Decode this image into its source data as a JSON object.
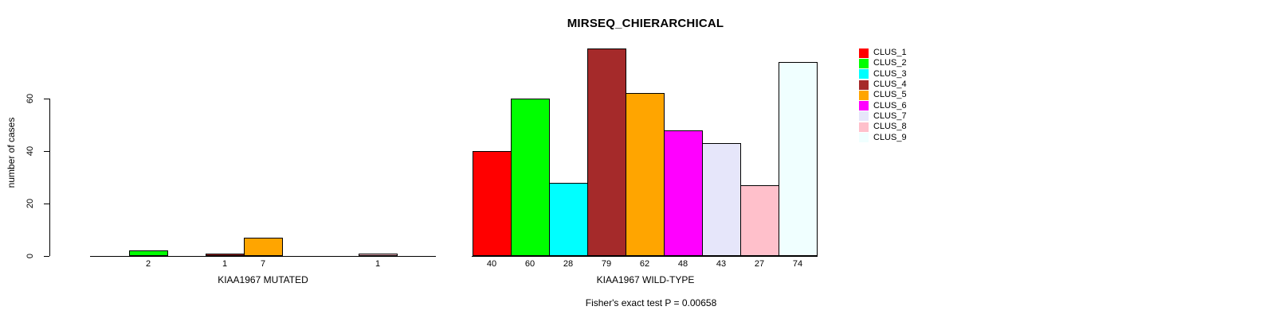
{
  "chart_data": {
    "type": "bar",
    "title": "MIRSEQ_CHIERARCHICAL",
    "ylabel": "number of cases",
    "ylim": [
      0,
      80
    ],
    "yticks": [
      "0",
      "20",
      "40",
      "60"
    ],
    "grid": false,
    "legend_position": "right-outside",
    "categories": [
      "CLUS_1",
      "CLUS_2",
      "CLUS_3",
      "CLUS_4",
      "CLUS_5",
      "CLUS_6",
      "CLUS_7",
      "CLUS_8",
      "CLUS_9"
    ],
    "colors": [
      "#FF0000",
      "#00FF00",
      "#00FFFF",
      "#A52A2A",
      "#FFA500",
      "#FF00FF",
      "#E6E6FA",
      "#FFC0CB",
      "#F0FFFF"
    ],
    "panels": [
      {
        "xlabel": "KIAA1967 MUTATED",
        "values": [
          0,
          2,
          0,
          1,
          7,
          0,
          0,
          1,
          0
        ],
        "bar_labels": [
          "",
          "2",
          "",
          "1",
          "7",
          "",
          "",
          "1",
          ""
        ]
      },
      {
        "xlabel": "KIAA1967 WILD-TYPE",
        "values": [
          40,
          60,
          28,
          79,
          62,
          48,
          43,
          27,
          74
        ],
        "bar_labels": [
          "40",
          "60",
          "28",
          "79",
          "62",
          "48",
          "43",
          "27",
          "74"
        ]
      }
    ],
    "annotation": "Fisher's exact test P = 0.00658"
  }
}
